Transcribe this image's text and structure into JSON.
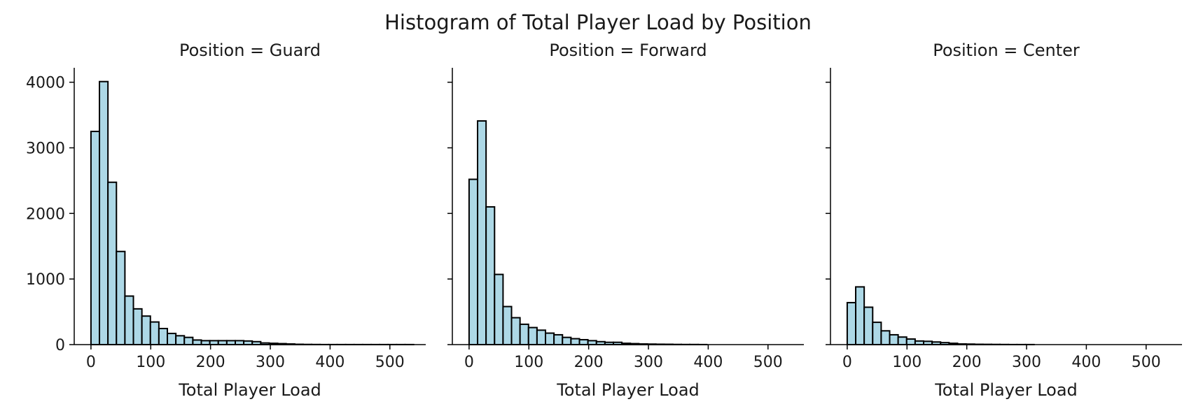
{
  "chart_data": {
    "type": "bar",
    "title": "Histogram of Total Player Load by Position",
    "bar_color": "#add8e6",
    "edge_color": "#000000",
    "bin_width": 14.2,
    "xlim": [
      -28,
      560
    ],
    "ylim": [
      0,
      4220
    ],
    "xticks": [
      0,
      100,
      200,
      300,
      400,
      500
    ],
    "yticks": [
      0,
      1000,
      2000,
      3000,
      4000
    ],
    "xlabel": "Total Player Load",
    "ylabel": "",
    "facets": [
      {
        "title": "Position = Guard",
        "bin_start": 0,
        "values": [
          3250,
          4010,
          2475,
          1420,
          740,
          545,
          435,
          345,
          245,
          170,
          135,
          110,
          70,
          60,
          60,
          60,
          60,
          60,
          55,
          45,
          25,
          20,
          15,
          10,
          5,
          3,
          2,
          1,
          1,
          1,
          1,
          1,
          1,
          1,
          1,
          1,
          1,
          1
        ]
      },
      {
        "title": "Position = Forward",
        "bin_start": 0,
        "values": [
          2520,
          3410,
          2100,
          1070,
          580,
          410,
          310,
          260,
          220,
          175,
          150,
          110,
          90,
          75,
          60,
          45,
          35,
          35,
          20,
          15,
          10,
          8,
          6,
          5,
          3,
          2,
          2,
          1
        ]
      },
      {
        "title": "Position = Center",
        "bin_start": 0,
        "values": [
          640,
          880,
          570,
          340,
          210,
          150,
          115,
          85,
          55,
          50,
          40,
          30,
          20,
          10,
          8,
          5,
          4,
          3,
          2,
          1,
          1,
          1
        ]
      }
    ]
  }
}
